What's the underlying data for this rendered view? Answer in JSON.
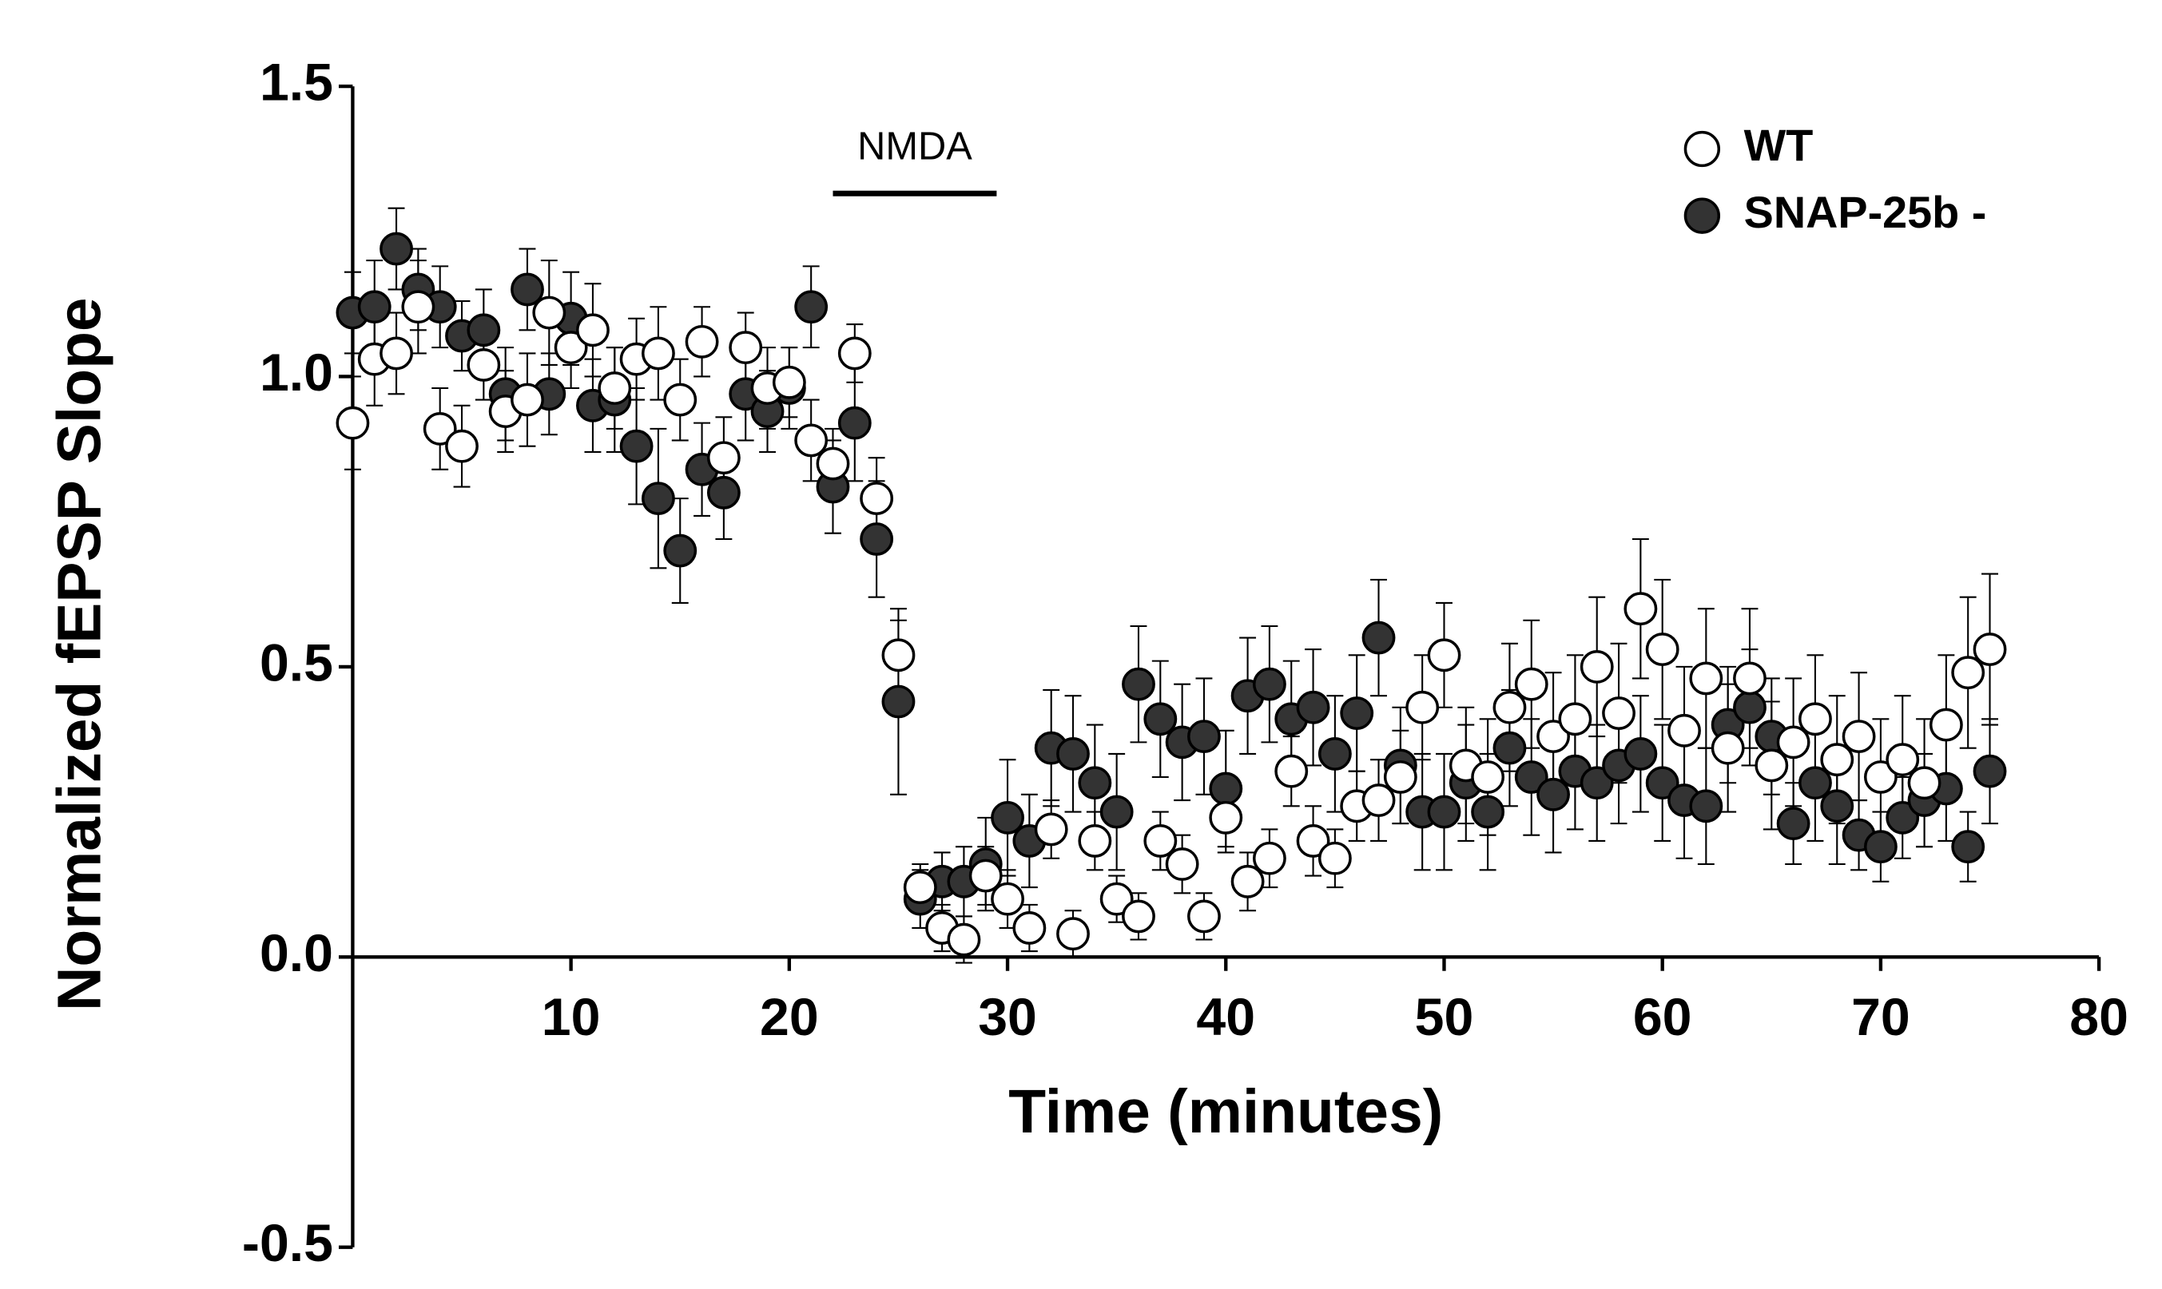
{
  "chart_data": {
    "type": "scatter",
    "xlabel": "Time (minutes)",
    "ylabel": "Normalized fEPSP Slope",
    "xlim": [
      0,
      80
    ],
    "xticks": [
      10,
      20,
      30,
      40,
      50,
      60,
      70,
      80
    ],
    "ylim": [
      -0.5,
      1.5
    ],
    "yticks": [
      -0.5,
      {
        "value": 0,
        "label": "0.0"
      },
      0.5,
      {
        "value": 1,
        "label": "1.0"
      },
      1.5
    ],
    "legend": "upper right",
    "annotations": [
      {
        "text": "NMDA",
        "start": 22,
        "end": 29.5
      }
    ],
    "x": [
      0,
      1,
      2,
      3,
      4,
      5,
      6,
      7,
      8,
      9,
      10,
      11,
      12,
      13,
      14,
      15,
      16,
      17,
      18,
      19,
      20,
      21,
      22,
      23,
      24,
      25,
      26,
      27,
      28,
      29,
      30,
      31,
      32,
      33,
      34,
      35,
      36,
      37,
      38,
      39,
      40,
      41,
      42,
      43,
      44,
      45,
      46,
      47,
      48,
      49,
      50,
      51,
      52,
      53,
      54,
      55,
      56,
      57,
      58,
      59,
      60,
      61,
      62,
      63,
      64,
      65,
      66,
      67,
      68,
      69,
      70,
      71,
      72,
      73,
      74,
      75
    ],
    "series": [
      {
        "name": "WT",
        "color": "#ffffff",
        "values": [
          0.92,
          1.03,
          1.04,
          1.12,
          0.91,
          0.88,
          1.02,
          0.94,
          0.96,
          1.11,
          1.05,
          1.08,
          0.98,
          1.03,
          1.04,
          0.96,
          1.06,
          0.86,
          1.05,
          0.98,
          0.99,
          0.89,
          0.85,
          1.04,
          0.79,
          0.52,
          0.12,
          0.05,
          0.03,
          0.14,
          0.1,
          0.05,
          0.22,
          0.04,
          0.2,
          0.1,
          0.07,
          0.2,
          0.16,
          0.07,
          0.24,
          0.13,
          0.17,
          0.32,
          0.2,
          0.17,
          0.26,
          0.27,
          0.31,
          0.43,
          0.52,
          0.33,
          0.31,
          0.43,
          0.47,
          0.38,
          0.41,
          0.5,
          0.42,
          0.6,
          0.53,
          0.39,
          0.48,
          0.36,
          0.48,
          0.33,
          0.37,
          0.41,
          0.34,
          0.38,
          0.31,
          0.34,
          0.3,
          0.4,
          0.49,
          0.53
        ],
        "errors": [
          0.08,
          0.08,
          0.07,
          0.08,
          0.07,
          0.07,
          0.06,
          0.07,
          0.08,
          0.09,
          0.07,
          0.08,
          0.07,
          0.07,
          0.08,
          0.07,
          0.06,
          0.07,
          0.06,
          0.07,
          0.06,
          0.07,
          0.06,
          0.05,
          0.07,
          0.06,
          0.04,
          0.04,
          0.04,
          0.05,
          0.05,
          0.04,
          0.05,
          0.04,
          0.05,
          0.04,
          0.04,
          0.05,
          0.05,
          0.04,
          0.06,
          0.05,
          0.05,
          0.06,
          0.06,
          0.05,
          0.06,
          0.07,
          0.08,
          0.09,
          0.09,
          0.1,
          0.1,
          0.11,
          0.11,
          0.11,
          0.11,
          0.12,
          0.12,
          0.12,
          0.12,
          0.11,
          0.12,
          0.11,
          0.12,
          0.11,
          0.11,
          0.11,
          0.11,
          0.11,
          0.1,
          0.11,
          0.11,
          0.12,
          0.13,
          0.13
        ]
      },
      {
        "name": "SNAP-25b -",
        "color": "#333333",
        "values": [
          1.11,
          1.12,
          1.22,
          1.15,
          1.12,
          1.07,
          1.08,
          0.97,
          1.15,
          0.97,
          1.1,
          0.95,
          0.96,
          0.88,
          0.79,
          0.7,
          0.84,
          0.8,
          0.97,
          0.94,
          0.98,
          1.12,
          0.81,
          0.92,
          0.72,
          0.44,
          0.1,
          0.13,
          0.13,
          0.16,
          0.24,
          0.2,
          0.36,
          0.35,
          0.3,
          0.25,
          0.47,
          0.41,
          0.37,
          0.38,
          0.29,
          0.45,
          0.47,
          0.41,
          0.43,
          0.35,
          0.42,
          0.55,
          0.33,
          0.25,
          0.25,
          0.3,
          0.25,
          0.36,
          0.31,
          0.28,
          0.32,
          0.3,
          0.33,
          0.35,
          0.3,
          0.27,
          0.26,
          0.4,
          0.43,
          0.38,
          0.23,
          0.3,
          0.26,
          0.21,
          0.19,
          0.24,
          0.27,
          0.29,
          0.19,
          0.32
        ],
        "errors": [
          0.07,
          0.08,
          0.07,
          0.07,
          0.07,
          0.06,
          0.07,
          0.08,
          0.07,
          0.07,
          0.08,
          0.08,
          0.09,
          0.1,
          0.12,
          0.09,
          0.08,
          0.08,
          0.08,
          0.07,
          0.07,
          0.07,
          0.08,
          0.1,
          0.1,
          0.16,
          0.05,
          0.05,
          0.06,
          0.08,
          0.1,
          0.08,
          0.1,
          0.1,
          0.1,
          0.1,
          0.1,
          0.1,
          0.1,
          0.1,
          0.1,
          0.1,
          0.1,
          0.1,
          0.1,
          0.1,
          0.1,
          0.1,
          0.1,
          0.1,
          0.1,
          0.1,
          0.1,
          0.1,
          0.1,
          0.1,
          0.1,
          0.1,
          0.1,
          0.1,
          0.1,
          0.1,
          0.1,
          0.1,
          0.1,
          0.1,
          0.07,
          0.1,
          0.1,
          0.06,
          0.06,
          0.07,
          0.08,
          0.09,
          0.06,
          0.09
        ]
      }
    ]
  }
}
